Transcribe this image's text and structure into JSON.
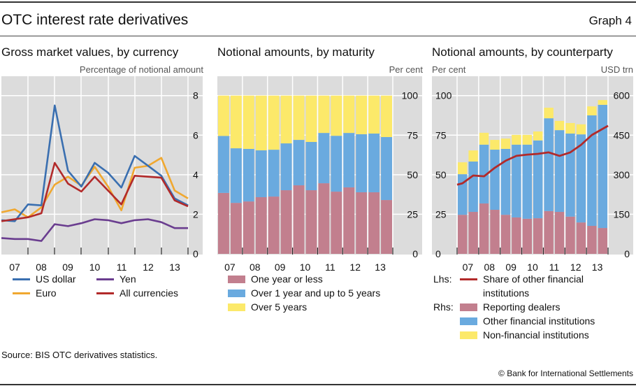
{
  "header": {
    "title": "OTC interest rate derivatives",
    "graph_number": "Graph 4"
  },
  "footer": {
    "source": "Source: BIS OTC derivatives statistics.",
    "copyright": "© Bank for International Settlements"
  },
  "colors": {
    "us_dollar": "#3a6fb0",
    "euro": "#f0a830",
    "yen": "#6a3d8f",
    "all_currencies": "#b22a2a",
    "one_year_or_less": "#c27f8e",
    "one_to_five_years": "#6aaadf",
    "over_five_years": "#fce96a",
    "reporting_dealers": "#c27f8e",
    "other_financial": "#6aaadf",
    "non_financial": "#fce96a",
    "share_line": "#b22a2a",
    "plot_bg": "#dcdcdc",
    "grid": "#ffffff"
  },
  "chart_data": [
    {
      "type": "line",
      "title": "Gross market values, by currency",
      "ylabel": "Percentage of notional amount",
      "xlabel": "",
      "x": [
        "06H2",
        "07H1",
        "07H2",
        "08H1",
        "08H2",
        "09H1",
        "09H2",
        "10H1",
        "10H2",
        "11H1",
        "11H2",
        "12H1",
        "12H2",
        "13H1",
        "13H2"
      ],
      "x_tick_labels": [
        "07",
        "08",
        "09",
        "10",
        "11",
        "12",
        "13"
      ],
      "y_tick_labels": [
        "0",
        "2",
        "4",
        "6",
        "8"
      ],
      "ylim": [
        0,
        8
      ],
      "y_axis_side": "right",
      "grid": true,
      "series": [
        {
          "name": "US dollar",
          "color_key": "us_dollar",
          "values": [
            1.7,
            1.65,
            2.5,
            2.45,
            7.5,
            4.2,
            3.4,
            4.6,
            4.1,
            3.35,
            4.95,
            4.45,
            3.95,
            2.8,
            2.45
          ]
        },
        {
          "name": "Euro",
          "color_key": "euro",
          "values": [
            2.1,
            2.25,
            1.85,
            2.35,
            3.5,
            3.9,
            3.45,
            4.4,
            3.4,
            2.2,
            4.35,
            4.45,
            4.85,
            3.2,
            2.8
          ]
        },
        {
          "name": "Yen",
          "color_key": "yen",
          "values": [
            0.8,
            0.75,
            0.75,
            0.65,
            1.5,
            1.4,
            1.55,
            1.75,
            1.7,
            1.55,
            1.7,
            1.75,
            1.6,
            1.3,
            1.3
          ]
        },
        {
          "name": "All currencies",
          "color_key": "all_currencies",
          "values": [
            1.65,
            1.75,
            1.85,
            2.05,
            4.6,
            3.55,
            3.15,
            3.9,
            3.2,
            2.5,
            3.95,
            3.9,
            3.85,
            2.7,
            2.4
          ]
        }
      ],
      "legend": [
        "US dollar",
        "Yen",
        "Euro",
        "All currencies"
      ],
      "legend_placement": "bottom"
    },
    {
      "type": "bar",
      "stacked": true,
      "title": "Notional amounts, by maturity",
      "ylabel": "Per cent",
      "xlabel": "",
      "categories": [
        "07H1",
        "07H2",
        "08H1",
        "08H2",
        "09H1",
        "09H2",
        "10H1",
        "10H2",
        "11H1",
        "11H2",
        "12H1",
        "12H2",
        "13H1",
        "13H2"
      ],
      "x_tick_labels": [
        "07",
        "08",
        "09",
        "10",
        "11",
        "12",
        "13"
      ],
      "y_tick_labels": [
        "0",
        "25",
        "50",
        "75",
        "100"
      ],
      "ylim": [
        0,
        100
      ],
      "y_axis_side": "right",
      "grid": true,
      "series": [
        {
          "name": "One year or less",
          "color_key": "one_year_or_less",
          "values": [
            38.5,
            32.2,
            33.1,
            35.8,
            36.2,
            40.2,
            43.3,
            40.2,
            44.6,
            39.3,
            42.0,
            38.9,
            38.9,
            34.0
          ]
        },
        {
          "name": "Over 1 year and up to 5 years",
          "color_key": "one_to_five_years",
          "values": [
            36.0,
            34.5,
            33.2,
            29.6,
            29.6,
            29.6,
            28.7,
            30.5,
            31.8,
            35.3,
            34.4,
            36.7,
            37.1,
            39.8
          ]
        },
        {
          "name": "Over 5 years",
          "color_key": "over_five_years",
          "values": [
            25.5,
            33.3,
            33.7,
            34.6,
            34.2,
            30.2,
            28.0,
            29.3,
            23.6,
            25.4,
            23.6,
            24.4,
            24.0,
            26.2
          ]
        }
      ],
      "legend_placement": "bottom"
    },
    {
      "type": "bar",
      "stacked": true,
      "title": "Notional amounts, by counterparty",
      "ylabel_left": "Per cent",
      "ylabel_right": "USD trn",
      "xlabel": "",
      "categories": [
        "07H1",
        "07H2",
        "08H1",
        "08H2",
        "09H1",
        "09H2",
        "10H1",
        "10H2",
        "11H1",
        "11H2",
        "12H1",
        "12H2",
        "13H1",
        "13H2"
      ],
      "x_tick_labels": [
        "07",
        "08",
        "09",
        "10",
        "11",
        "12",
        "13"
      ],
      "y_left_tick_labels": [
        "0",
        "25",
        "50",
        "75",
        "100"
      ],
      "y_right_tick_labels": [
        "0",
        "150",
        "300",
        "450",
        "600"
      ],
      "ylim_left": [
        0,
        100
      ],
      "ylim_right": [
        0,
        600
      ],
      "grid": true,
      "series": [
        {
          "name": "Reporting dealers",
          "axis": "right",
          "color_key": "reporting_dealers",
          "values": [
            148,
            159,
            191,
            167,
            148,
            138,
            133,
            135,
            162,
            159,
            141,
            119,
            106,
            98
          ]
        },
        {
          "name": "Other financial institutions",
          "axis": "right",
          "color_key": "other_financial",
          "values": [
            154,
            191,
            223,
            228,
            250,
            276,
            281,
            295,
            352,
            310,
            315,
            334,
            419,
            467
          ]
        },
        {
          "name": "Non-financial institutions",
          "axis": "right",
          "color_key": "non_financial",
          "values": [
            45,
            42,
            45,
            37,
            39,
            37,
            37,
            34,
            40,
            35,
            40,
            38,
            34,
            18
          ]
        }
      ],
      "line_series": {
        "name": "Share of other financial institutions",
        "axis": "left",
        "color_key": "share_line",
        "x": [
          "06H2",
          "07H1",
          "07H2",
          "08H1",
          "08H2",
          "09H1",
          "09H2",
          "10H1",
          "10H2",
          "11H1",
          "11H2",
          "12H1",
          "12H2",
          "13H1",
          "13H2"
        ],
        "values": [
          43.7,
          44.6,
          49.5,
          49.0,
          54.4,
          58.8,
          61.9,
          62.7,
          63.2,
          64.1,
          61.9,
          64.1,
          68.9,
          75.1,
          80.9
        ]
      },
      "legend": {
        "lhs_label": "Lhs:",
        "rhs_label": "Rhs:",
        "lhs_items": [
          "Share of other financial institutions"
        ],
        "rhs_items": [
          "Reporting dealers",
          "Other financial institutions",
          "Non-financial institutions"
        ]
      },
      "legend_placement": "bottom"
    }
  ],
  "panels": {
    "p1": {
      "title": "Gross market values, by currency",
      "unit": "Percentage of notional amount",
      "legend": [
        {
          "label": "US dollar",
          "color_key": "us_dollar"
        },
        {
          "label": "Yen",
          "color_key": "yen"
        },
        {
          "label": "Euro",
          "color_key": "euro"
        },
        {
          "label": "All currencies",
          "color_key": "all_currencies"
        }
      ]
    },
    "p2": {
      "title": "Notional amounts, by maturity",
      "unit": "Per cent",
      "legend": [
        {
          "label": "One year or less",
          "color_key": "one_year_or_less"
        },
        {
          "label": "Over 1 year and up to 5 years",
          "color_key": "one_to_five_years"
        },
        {
          "label": "Over 5 years",
          "color_key": "over_five_years"
        }
      ]
    },
    "p3": {
      "title": "Notional amounts, by counterparty",
      "unit_left": "Per cent",
      "unit_right": "USD trn",
      "legend_lhs": "Lhs:",
      "legend_rhs": "Rhs:",
      "legend_line": "Share of other financial institutions",
      "legend_line_1": "Share of other financial",
      "legend_line_2": "institutions",
      "legend_bars": [
        {
          "label": "Reporting dealers",
          "color_key": "reporting_dealers"
        },
        {
          "label": "Other financial institutions",
          "color_key": "other_financial"
        },
        {
          "label": "Non-financial institutions",
          "color_key": "non_financial"
        }
      ]
    }
  }
}
